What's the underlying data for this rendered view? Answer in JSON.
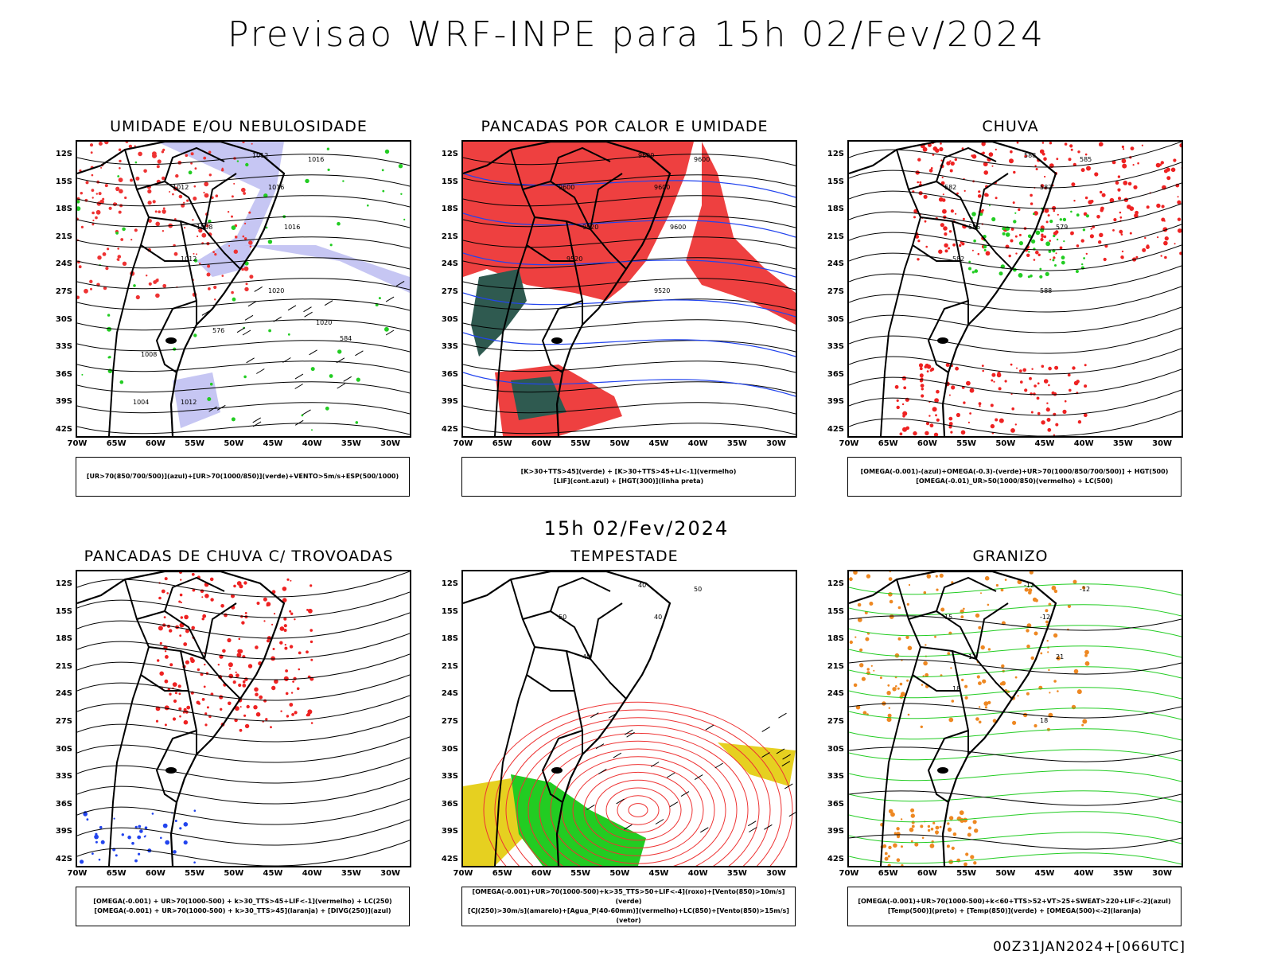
{
  "title": "Previsao WRF-INPE  para 15h 02/Fev/2024",
  "subtitle": "15h 02/Fev/2024",
  "footer": "00Z31JAN2024+[066UTC]",
  "lat_labels": [
    "12S",
    "15S",
    "18S",
    "21S",
    "24S",
    "27S",
    "30S",
    "33S",
    "36S",
    "39S",
    "42S"
  ],
  "lon_labels": [
    "70W",
    "65W",
    "60W",
    "55W",
    "50W",
    "45W",
    "40W",
    "35W",
    "30W"
  ],
  "panels": [
    {
      "title": "UMIDADE E/OU NEBULOSIDADE",
      "legend": [
        "[UR>70(850/700/500)](azul)+[UR>70(1000/850)](verde)+VENTO>5m/s+ESP(500/1000)"
      ],
      "contour_labels": [
        "1012",
        "1016",
        "1016",
        "1012",
        "1008",
        "1012",
        "1016",
        "1020",
        "1020",
        "584",
        "576",
        "1004",
        "1008",
        "1012"
      ],
      "colors": {
        "primary": "#b8b8f0",
        "secondary": "#22cc22",
        "tertiary": "#ee3333"
      }
    },
    {
      "title": "PANCADAS POR CALOR E UMIDADE",
      "legend": [
        "[K>30+TTS>45](verde) + [K>30+TTS>45+LI<-1](vermelho)",
        "[LIF](cont.azul) + [HGT(300)](linha preta)"
      ],
      "contour_labels": [
        "9600",
        "9600",
        "9600",
        "9600",
        "9520",
        "9520",
        "9600",
        "9520"
      ],
      "colors": {
        "primary": "#ee4040",
        "secondary": "#2f5a50",
        "tertiary": "#2244ee"
      }
    },
    {
      "title": "CHUVA",
      "legend": [
        "[OMEGA(-0.001)-(azul)+OMEGA(-0.3)-(verde)+UR>70(1000/850/700/500)] + HGT(500)",
        "[OMEGA(-0.01)_UR>50(1000/850)(vermelho) + LC(500)"
      ],
      "contour_labels": [
        "588",
        "585",
        "582",
        "582",
        "585",
        "582",
        "579",
        "588"
      ],
      "colors": {
        "primary": "#ee2222",
        "secondary": "#22cc22",
        "tertiary": "#2244ee"
      }
    },
    {
      "title": "PANCADAS DE CHUVA C/ TROVOADAS",
      "legend": [
        "[OMEGA(-0.001) + UR>70(1000-500) + k>30_TTS>45+LIF<-1](vermelho) + LC(250)",
        "[OMEGA(-0.001) + UR>70(1000-500) + k>30_TTS>45](laranja) + [DIVG(250)](azul)"
      ],
      "contour_labels": [],
      "colors": {
        "primary": "#ee2222",
        "secondary": "#2244ee",
        "tertiary": "#ff8800"
      }
    },
    {
      "title": "TEMPESTADE",
      "legend": [
        "[OMEGA(-0.001)+UR>70(1000-500)+k>35_TTS>50+LIF<-4](roxo)+[Vento(850)>10m/s](verde)",
        "[CJ(250)>30m/s](amarelo)+[Agua_P(40-60mm)](vermelho)+LC(850)+[Vento(850)>15m/s](vetor)"
      ],
      "contour_labels": [
        "40",
        "50",
        "40",
        "50",
        "40"
      ],
      "colors": {
        "primary": "#ee3333",
        "secondary": "#22cc22",
        "tertiary": "#e6d020"
      }
    },
    {
      "title": "GRANIZO",
      "legend": [
        "[OMEGA(-0.001)+UR>70(1000-500)+k<60+TTS>52+VT>25+SWEAT>220+LIF<-2](azul)",
        "[Temp(500)](preto) + [Temp(850)](verde) + [OMEGA(500)<-2](laranja)"
      ],
      "contour_labels": [
        "-12",
        "-12",
        "-12",
        "15",
        "12",
        "18",
        "21",
        "18"
      ],
      "colors": {
        "primary": "#22cc22",
        "secondary": "#ee8822",
        "tertiary": "#2244ee"
      }
    }
  ]
}
